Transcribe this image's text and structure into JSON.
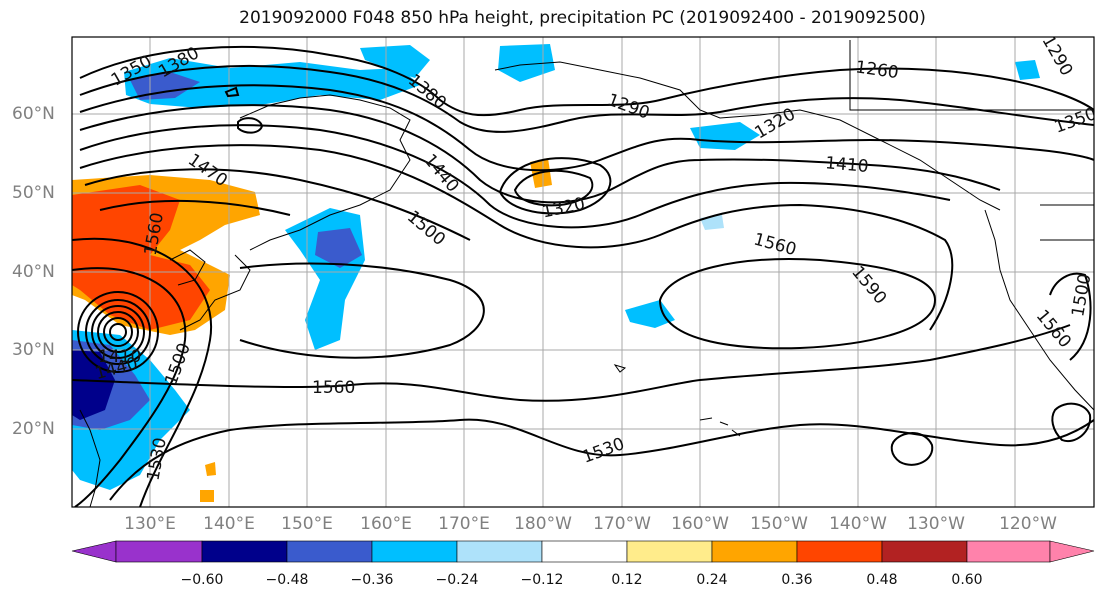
{
  "title": "2019092000 F048 850 hPa height, precipitation PC (2019092400 - 2019092500)",
  "lat_labels": [
    "60°N",
    "50°N",
    "40°N",
    "30°N",
    "20°N"
  ],
  "lon_labels": [
    "130°E",
    "140°E",
    "150°E",
    "160°E",
    "170°E",
    "180°W",
    "170°W",
    "160°W",
    "150°W",
    "140°W",
    "130°W",
    "120°W"
  ],
  "contour_labels": {
    "c1350_nw": "1350",
    "c1380_nw": "1380",
    "c1380_mid": "1380",
    "c1290_n": "1290",
    "c1260_ne": "1260",
    "c1290_ne": "1290",
    "c1320_ak": "1320",
    "c1350_e": "1350",
    "c1410": "1410",
    "c1470": "1470",
    "c1440_mid": "1440",
    "c1320_low": "1320",
    "c1560_w": "1560",
    "c1500_mid": "1500",
    "c1560_e": "1560",
    "c1590": "1590",
    "c1560_s": "1560",
    "c1530_s": "1530",
    "c1410_ty": "1410",
    "c1440_ty": "1440",
    "c1500_ty": "1500",
    "c1530_ty": "1530",
    "c1560_ca": "1560",
    "c1500_ca": "1500"
  },
  "colorbar": {
    "ticks": [
      "−0.60",
      "−0.48",
      "−0.36",
      "−0.24",
      "−0.12",
      "0.12",
      "0.24",
      "0.36",
      "0.48",
      "0.60"
    ],
    "colors": [
      "#9932cc",
      "#00008b",
      "#3a5bcd",
      "#00bfff",
      "#aee2fa",
      "#ffffff",
      "#ffec8b",
      "#ffa500",
      "#ff4500",
      "#b22222",
      "#ff82ab"
    ]
  },
  "colors": {
    "contour": "#000000",
    "grid": "#a9a9a9",
    "axis_label": "#808080"
  }
}
